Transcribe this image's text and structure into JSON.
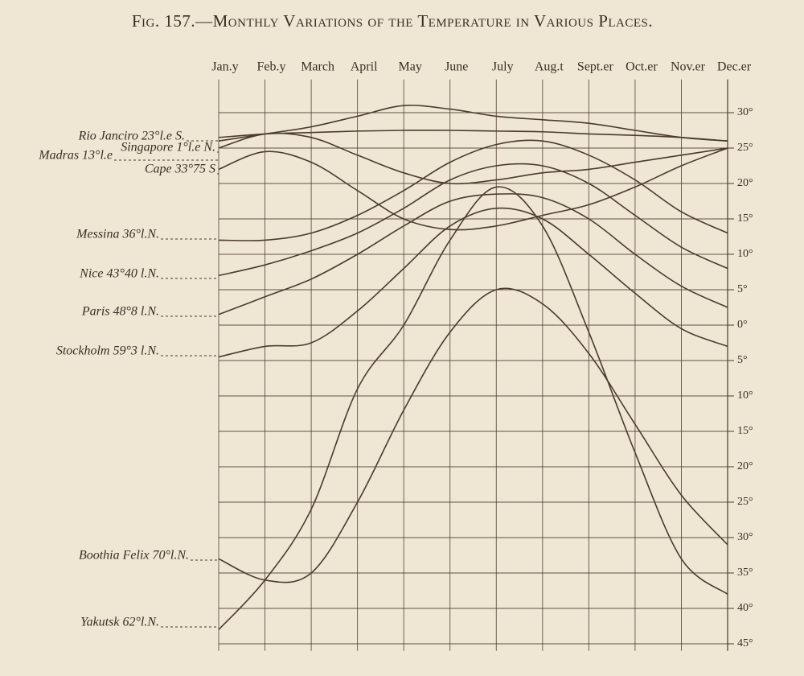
{
  "chart_data": {
    "type": "line",
    "title": "Fig. 157.—Monthly Variations of the Temperature in Various Places.",
    "categories": [
      "Jan.y",
      "Feb.y",
      "March",
      "April",
      "May",
      "June",
      "July",
      "Aug.t",
      "Sept.er",
      "Oct.er",
      "Nov.er",
      "Dec.er"
    ],
    "ylim": [
      -46,
      34
    ],
    "yticks": [
      {
        "value": 30,
        "label": "30°"
      },
      {
        "value": 25,
        "label": "25°"
      },
      {
        "value": 20,
        "label": "20°"
      },
      {
        "value": 15,
        "label": "15°"
      },
      {
        "value": 10,
        "label": "10°"
      },
      {
        "value": 5,
        "label": "5°"
      },
      {
        "value": 0,
        "label": "0°"
      },
      {
        "value": -5,
        "label": "5°"
      },
      {
        "value": -10,
        "label": "10°"
      },
      {
        "value": -15,
        "label": "15°"
      },
      {
        "value": -20,
        "label": "20°"
      },
      {
        "value": -25,
        "label": "25°"
      },
      {
        "value": -30,
        "label": "30°"
      },
      {
        "value": -35,
        "label": "35°"
      },
      {
        "value": -40,
        "label": "40°"
      },
      {
        "value": -45,
        "label": "45°"
      }
    ],
    "grid": true,
    "line_color": "#4a3b2e",
    "series": [
      {
        "name": "Rio Janciro 23°l.e S.",
        "values": [
          26,
          27,
          28,
          29.5,
          31,
          30.5,
          29.5,
          29,
          28.5,
          27.5,
          26.5,
          26
        ]
      },
      {
        "name": "Singapore 1°l.e N.",
        "values": [
          26.5,
          27,
          27.2,
          27.4,
          27.5,
          27.5,
          27.4,
          27.3,
          27,
          26.8,
          26.5,
          26
        ]
      },
      {
        "name": "Madras 13°l.e",
        "values": [
          25,
          27,
          26.5,
          24,
          21.5,
          20,
          20.5,
          21.5,
          22,
          23,
          24,
          25
        ]
      },
      {
        "name": "Cape 33°75 S",
        "values": [
          22,
          24.5,
          23,
          19,
          15,
          13.5,
          14,
          15.5,
          17,
          19.5,
          22.5,
          25
        ]
      },
      {
        "name": "Messina 36°l.N.",
        "values": [
          12,
          12,
          13,
          15.5,
          19,
          23,
          25.5,
          26,
          24,
          20.5,
          16,
          13
        ]
      },
      {
        "name": "Nice 43°40 l.N.",
        "values": [
          7,
          8.5,
          10.5,
          13,
          16.5,
          20.5,
          22.5,
          22.5,
          20,
          15.5,
          11,
          8
        ]
      },
      {
        "name": "Paris 48°8 l.N.",
        "values": [
          1.5,
          4,
          6.5,
          10,
          14,
          17.5,
          18.5,
          18,
          15,
          10,
          5.5,
          2.5
        ]
      },
      {
        "name": "Stockholm 59°3 l.N.",
        "values": [
          -4.5,
          -3,
          -2.5,
          2,
          8,
          14,
          16.5,
          15,
          10,
          4.5,
          -0.5,
          -3
        ]
      },
      {
        "name": "Boothia Felix 70°l.N.",
        "values": [
          -33,
          -36,
          -35,
          -25,
          -12,
          -1,
          5,
          3,
          -4,
          -14,
          -24,
          -31
        ]
      },
      {
        "name": "Yakutsk 62°l.N.",
        "values": [
          -43,
          -36,
          -26,
          -9,
          0,
          12,
          19.5,
          14,
          -1,
          -18,
          -33,
          -38
        ]
      }
    ]
  }
}
